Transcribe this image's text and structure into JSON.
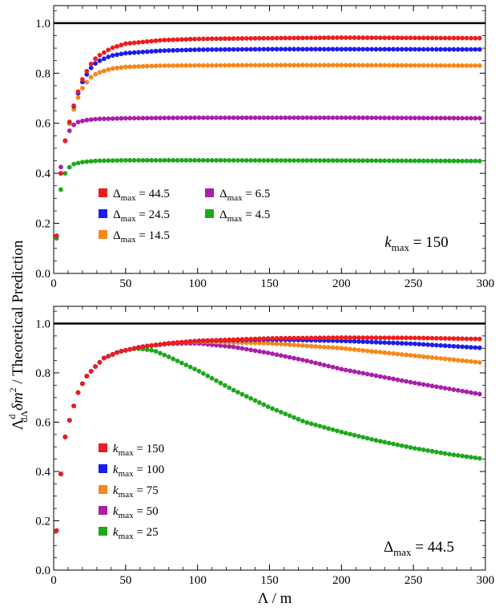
{
  "chart_data": [
    {
      "type": "scatter",
      "title": "",
      "xlabel": "",
      "ylabel": "",
      "xlim": [
        0,
        300
      ],
      "ylim": [
        0,
        1.07
      ],
      "xticks": [
        "0",
        "50",
        "100",
        "150",
        "200",
        "250",
        "300"
      ],
      "yticks": [
        "0.0",
        "0.2",
        "0.4",
        "0.6",
        "0.8",
        "1.0"
      ],
      "reference_line": 1.0,
      "annotation": {
        "var": "k",
        "sub": "max",
        "rest": " = 150"
      },
      "legend_columns": 2,
      "series": [
        {
          "label": {
            "var": "Δ",
            "sub": "max",
            "rest": " = 44.5"
          },
          "color": "#ee1c1c",
          "p": [
            [
              0,
              0
            ],
            [
              2,
              0.15
            ],
            [
              5,
              0.4
            ],
            [
              8,
              0.53
            ],
            [
              12,
              0.63
            ],
            [
              16,
              0.71
            ],
            [
              20,
              0.775
            ],
            [
              25,
              0.83
            ],
            [
              30,
              0.865
            ],
            [
              40,
              0.9
            ],
            [
              50,
              0.918
            ],
            [
              75,
              0.932
            ],
            [
              100,
              0.937
            ],
            [
              150,
              0.94
            ],
            [
              200,
              0.942
            ],
            [
              300,
              0.94
            ]
          ]
        },
        {
          "label": {
            "var": "Δ",
            "sub": "max",
            "rest": " = 24.5"
          },
          "color": "#1c1cee",
          "p": [
            [
              0,
              0
            ],
            [
              2,
              0.15
            ],
            [
              5,
              0.4
            ],
            [
              8,
              0.53
            ],
            [
              12,
              0.63
            ],
            [
              16,
              0.705
            ],
            [
              20,
              0.765
            ],
            [
              25,
              0.815
            ],
            [
              30,
              0.845
            ],
            [
              40,
              0.87
            ],
            [
              50,
              0.88
            ],
            [
              75,
              0.89
            ],
            [
              100,
              0.894
            ],
            [
              150,
              0.896
            ],
            [
              200,
              0.896
            ],
            [
              300,
              0.895
            ]
          ]
        },
        {
          "label": {
            "var": "Δ",
            "sub": "max",
            "rest": " = 14.5"
          },
          "color": "#f7861b",
          "p": [
            [
              0,
              0
            ],
            [
              2,
              0.15
            ],
            [
              5,
              0.4
            ],
            [
              8,
              0.53
            ],
            [
              12,
              0.62
            ],
            [
              16,
              0.69
            ],
            [
              20,
              0.74
            ],
            [
              25,
              0.78
            ],
            [
              30,
              0.8
            ],
            [
              40,
              0.818
            ],
            [
              50,
              0.825
            ],
            [
              75,
              0.83
            ],
            [
              100,
              0.831
            ],
            [
              150,
              0.832
            ],
            [
              200,
              0.832
            ],
            [
              300,
              0.83
            ]
          ]
        },
        {
          "label": {
            "var": "Δ",
            "sub": "max",
            "rest": " = 6.5"
          },
          "color": "#a81fa8",
          "p": [
            [
              0,
              0
            ],
            [
              2,
              0.15
            ],
            [
              4,
              0.38
            ],
            [
              6,
              0.47
            ],
            [
              8,
              0.53
            ],
            [
              10,
              0.56
            ],
            [
              13,
              0.59
            ],
            [
              17,
              0.605
            ],
            [
              22,
              0.612
            ],
            [
              30,
              0.617
            ],
            [
              50,
              0.62
            ],
            [
              100,
              0.622
            ],
            [
              200,
              0.622
            ],
            [
              300,
              0.62
            ]
          ]
        },
        {
          "label": {
            "var": "Δ",
            "sub": "max",
            "rest": " = 4.5"
          },
          "color": "#1da81d",
          "p": [
            [
              0,
              0
            ],
            [
              2,
              0.14
            ],
            [
              4,
              0.3
            ],
            [
              6,
              0.37
            ],
            [
              8,
              0.4
            ],
            [
              10,
              0.42
            ],
            [
              14,
              0.437
            ],
            [
              20,
              0.445
            ],
            [
              30,
              0.45
            ],
            [
              50,
              0.452
            ],
            [
              100,
              0.452
            ],
            [
              200,
              0.451
            ],
            [
              300,
              0.449
            ]
          ]
        }
      ]
    },
    {
      "type": "scatter",
      "title": "",
      "xlabel": "Λ / m",
      "ylabel": "",
      "xlim": [
        0,
        300
      ],
      "ylim": [
        0,
        1.07
      ],
      "xticks": [
        "0",
        "50",
        "100",
        "150",
        "200",
        "250",
        "300"
      ],
      "yticks": [
        "0.0",
        "0.2",
        "0.4",
        "0.6",
        "0.8",
        "1.0"
      ],
      "reference_line": 1.0,
      "annotation": {
        "var": "Δ",
        "sub": "max",
        "rest": " = 44.5"
      },
      "legend_columns": 1,
      "series": [
        {
          "label": {
            "var": "k",
            "sub": "max",
            "rest": " = 150"
          },
          "color": "#ee1c1c",
          "p": [
            [
              0,
              0
            ],
            [
              2,
              0.16
            ],
            [
              5,
              0.39
            ],
            [
              8,
              0.54
            ],
            [
              12,
              0.63
            ],
            [
              17,
              0.72
            ],
            [
              22,
              0.78
            ],
            [
              28,
              0.82
            ],
            [
              35,
              0.86
            ],
            [
              45,
              0.885
            ],
            [
              60,
              0.905
            ],
            [
              80,
              0.92
            ],
            [
              100,
              0.93
            ],
            [
              150,
              0.94
            ],
            [
              200,
              0.943
            ],
            [
              250,
              0.942
            ],
            [
              300,
              0.937
            ]
          ]
        },
        {
          "label": {
            "var": "k",
            "sub": "max",
            "rest": " = 100"
          },
          "color": "#1c1cee",
          "p": [
            [
              0,
              0
            ],
            [
              2,
              0.16
            ],
            [
              5,
              0.39
            ],
            [
              8,
              0.54
            ],
            [
              12,
              0.63
            ],
            [
              17,
              0.72
            ],
            [
              22,
              0.78
            ],
            [
              28,
              0.82
            ],
            [
              35,
              0.86
            ],
            [
              45,
              0.885
            ],
            [
              60,
              0.905
            ],
            [
              80,
              0.92
            ],
            [
              100,
              0.93
            ],
            [
              150,
              0.935
            ],
            [
              200,
              0.93
            ],
            [
              250,
              0.918
            ],
            [
              300,
              0.9
            ]
          ]
        },
        {
          "label": {
            "var": "k",
            "sub": "max",
            "rest": " = 75"
          },
          "color": "#f7861b",
          "p": [
            [
              0,
              0
            ],
            [
              2,
              0.16
            ],
            [
              5,
              0.39
            ],
            [
              8,
              0.54
            ],
            [
              12,
              0.63
            ],
            [
              17,
              0.72
            ],
            [
              22,
              0.78
            ],
            [
              28,
              0.82
            ],
            [
              35,
              0.86
            ],
            [
              45,
              0.885
            ],
            [
              60,
              0.905
            ],
            [
              80,
              0.92
            ],
            [
              100,
              0.927
            ],
            [
              150,
              0.92
            ],
            [
              200,
              0.9
            ],
            [
              250,
              0.87
            ],
            [
              300,
              0.84
            ]
          ]
        },
        {
          "label": {
            "var": "k",
            "sub": "max",
            "rest": " = 50"
          },
          "color": "#a81fa8",
          "p": [
            [
              0,
              0
            ],
            [
              2,
              0.16
            ],
            [
              5,
              0.39
            ],
            [
              8,
              0.54
            ],
            [
              12,
              0.63
            ],
            [
              17,
              0.72
            ],
            [
              22,
              0.78
            ],
            [
              28,
              0.82
            ],
            [
              35,
              0.86
            ],
            [
              45,
              0.885
            ],
            [
              60,
              0.905
            ],
            [
              80,
              0.918
            ],
            [
              100,
              0.92
            ],
            [
              125,
              0.905
            ],
            [
              150,
              0.88
            ],
            [
              175,
              0.85
            ],
            [
              200,
              0.815
            ],
            [
              250,
              0.76
            ],
            [
              300,
              0.71
            ]
          ]
        },
        {
          "label": {
            "var": "k",
            "sub": "max",
            "rest": " = 25"
          },
          "color": "#1da81d",
          "p": [
            [
              0,
              0
            ],
            [
              2,
              0.16
            ],
            [
              5,
              0.39
            ],
            [
              8,
              0.54
            ],
            [
              12,
              0.63
            ],
            [
              17,
              0.72
            ],
            [
              22,
              0.78
            ],
            [
              28,
              0.82
            ],
            [
              35,
              0.86
            ],
            [
              45,
              0.885
            ],
            [
              55,
              0.897
            ],
            [
              60,
              0.898
            ],
            [
              70,
              0.89
            ],
            [
              80,
              0.865
            ],
            [
              100,
              0.81
            ],
            [
              125,
              0.73
            ],
            [
              150,
              0.66
            ],
            [
              175,
              0.6
            ],
            [
              200,
              0.56
            ],
            [
              225,
              0.525
            ],
            [
              250,
              0.495
            ],
            [
              275,
              0.47
            ],
            [
              300,
              0.45
            ]
          ]
        }
      ]
    }
  ],
  "ylabel_left": {
    "prefix": "Λ",
    "frac_num": "d",
    "frac_den": "dΛ",
    "delta": "δ",
    "m": "m",
    "sup": "2",
    "rest": " / Theoretical Prediction"
  }
}
